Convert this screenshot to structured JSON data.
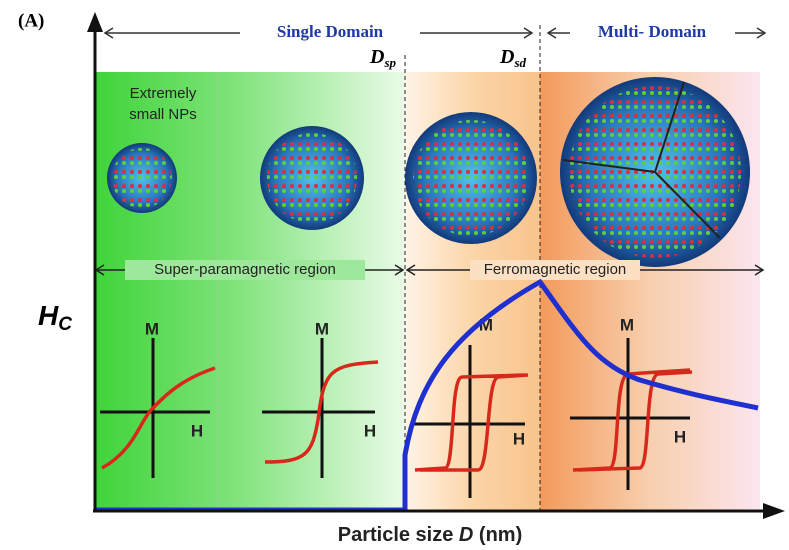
{
  "panel_label": "(A)",
  "domains": {
    "single": "Single Domain",
    "multi": "Multi- Domain"
  },
  "thresholds": [
    {
      "symbol": "D",
      "subscript": "sp"
    },
    {
      "symbol": "D",
      "subscript": "sd"
    }
  ],
  "note": [
    "Extremely",
    "small NPs"
  ],
  "regions": {
    "superparamagnetic": "Super-paramagnetic region",
    "ferromagnetic": "Ferromagnetic region"
  },
  "y_axis": {
    "symbol": "H",
    "subscript": "C"
  },
  "x_axis": [
    "Particle size ",
    "D",
    " (nm)"
  ],
  "loops": [
    {
      "m": "M",
      "h": "H"
    },
    {
      "m": "M",
      "h": "H"
    },
    {
      "m": "M",
      "h": "H"
    },
    {
      "m": "M",
      "h": "H"
    }
  ]
}
